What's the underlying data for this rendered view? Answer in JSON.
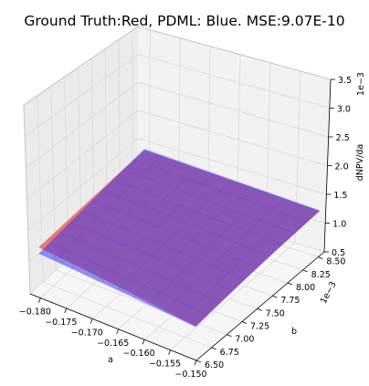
{
  "chart_data": {
    "type": "surface3d",
    "title": "Ground Truth:Red, PDML: Blue. MSE:9.07E-10",
    "xlabel": "a",
    "ylabel": "b",
    "zlabel": "dNPV/da",
    "y_offset_label": "1e−3",
    "z_offset_label": "1e−3",
    "xlim": [
      -0.182,
      -0.15
    ],
    "ylim": [
      6.5,
      8.6
    ],
    "zlim": [
      0.5,
      3.5
    ],
    "x_ticks": [
      -0.18,
      -0.175,
      -0.17,
      -0.165,
      -0.16,
      -0.155,
      -0.15
    ],
    "x_tick_labels": [
      "−0.180",
      "−0.175",
      "−0.170",
      "−0.165",
      "−0.160",
      "−0.155",
      "−0.150"
    ],
    "y_ticks": [
      6.5,
      6.75,
      7.0,
      7.25,
      7.5,
      7.75,
      8.0,
      8.25,
      8.5
    ],
    "y_tick_labels": [
      "6.50",
      "6.75",
      "7.00",
      "7.25",
      "7.50",
      "7.75",
      "8.00",
      "8.25",
      "8.50"
    ],
    "z_ticks": [
      0.5,
      1.0,
      1.5,
      2.0,
      2.5,
      3.0,
      3.5
    ],
    "z_tick_labels": [
      "0.5",
      "1.0",
      "1.5",
      "2.0",
      "2.5",
      "3.0",
      "3.5"
    ],
    "grid": true,
    "series": [
      {
        "name": "Ground Truth",
        "color": "#e8524a",
        "corners": [
          {
            "x": -0.18,
            "y": 6.5,
            "z": 1.3
          },
          {
            "x": -0.15,
            "y": 6.5,
            "z": 0.99
          },
          {
            "x": -0.15,
            "y": 8.5,
            "z": 1.29
          },
          {
            "x": -0.18,
            "y": 8.5,
            "z": 1.43
          }
        ]
      },
      {
        "name": "PDML",
        "color": "#3a3af0",
        "corners": [
          {
            "x": -0.18,
            "y": 6.5,
            "z": 1.2
          },
          {
            "x": -0.15,
            "y": 6.5,
            "z": 0.98
          },
          {
            "x": -0.15,
            "y": 8.5,
            "z": 1.3
          },
          {
            "x": -0.18,
            "y": 8.5,
            "z": 1.45
          }
        ]
      }
    ]
  }
}
